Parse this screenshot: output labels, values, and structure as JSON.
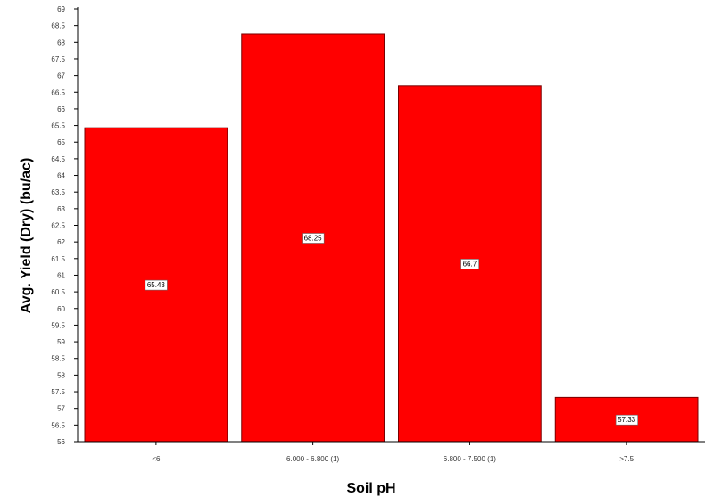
{
  "chart_data": {
    "type": "bar",
    "title": "",
    "xlabel": "Soil pH",
    "ylabel": "Avg. Yield (Dry) (bu/ac)",
    "categories": [
      "<6",
      "6.000 - 6.800 (1)",
      "6.800 - 7.500 (1)",
      ">7.5"
    ],
    "values": [
      65.43,
      68.25,
      66.7,
      57.33
    ],
    "data_labels": [
      "65.43",
      "68.25",
      "66.7",
      "57.33"
    ],
    "ylim": [
      56,
      69
    ],
    "y_ticks": [
      "56",
      "56.5",
      "57",
      "57.5",
      "58",
      "58.5",
      "59",
      "59.5",
      "60",
      "60.5",
      "61",
      "61.5",
      "62",
      "62.5",
      "63",
      "63.5",
      "64",
      "64.5",
      "65",
      "65.5",
      "66",
      "66.5",
      "67",
      "67.5",
      "68",
      "68.5",
      "69"
    ],
    "bar_color": "#ff0000",
    "bar_edge_color": "#7a0000",
    "grid": false,
    "legend": "none"
  }
}
